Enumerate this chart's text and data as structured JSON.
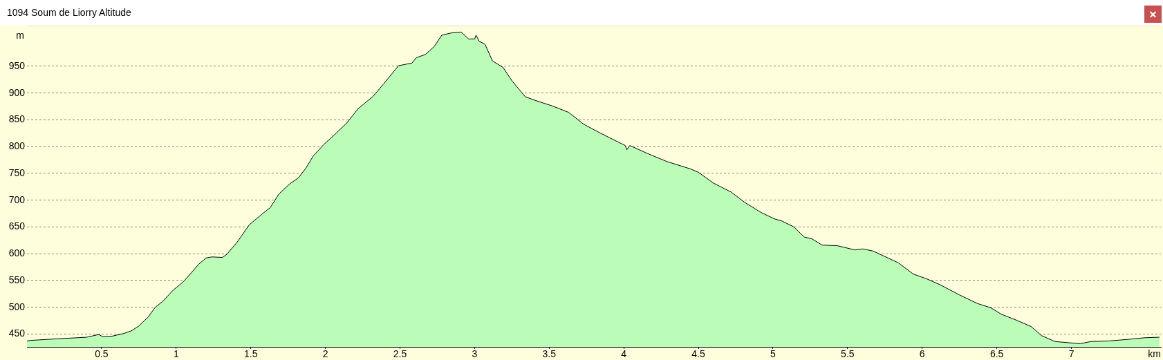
{
  "chart_data": {
    "type": "area",
    "title": "1094 Soum de Liorry Altitude",
    "xlabel": "km",
    "ylabel": "m",
    "x": [
      0,
      0.02,
      0.2,
      0.4,
      0.48,
      0.51,
      0.57,
      0.65,
      0.7,
      0.75,
      0.81,
      0.86,
      0.91,
      0.98,
      1.05,
      1.1,
      1.15,
      1.2,
      1.24,
      1.31,
      1.34,
      1.41,
      1.49,
      1.58,
      1.63,
      1.69,
      1.76,
      1.82,
      1.87,
      1.92,
      1.99,
      2.06,
      2.14,
      2.22,
      2.32,
      2.39,
      2.49,
      2.58,
      2.61,
      2.67,
      2.73,
      2.78,
      2.84,
      2.91,
      2.96,
      3.0,
      3.01,
      3.03,
      3.07,
      3.12,
      3.19,
      3.25,
      3.34,
      3.42,
      3.52,
      3.63,
      3.73,
      3.83,
      3.93,
      4.01,
      4.02,
      4.04,
      4.16,
      4.29,
      4.45,
      4.5,
      4.6,
      4.72,
      4.81,
      4.92,
      5.01,
      5.06,
      5.14,
      5.21,
      5.26,
      5.33,
      5.43,
      5.55,
      5.6,
      5.67,
      5.74,
      5.84,
      5.94,
      6.03,
      6.12,
      6.25,
      6.37,
      6.46,
      6.53,
      6.63,
      6.73,
      6.8,
      6.89,
      6.97,
      7.06,
      7.13,
      7.25,
      7.38,
      7.49,
      7.59
    ],
    "values": [
      437,
      438,
      441,
      444,
      449,
      445,
      446,
      451,
      456,
      465,
      481,
      500,
      511,
      532,
      548,
      564,
      580,
      592,
      594,
      593,
      599,
      622,
      654,
      675,
      686,
      712,
      730,
      742,
      760,
      783,
      804,
      822,
      843,
      871,
      894,
      917,
      951,
      956,
      966,
      972,
      987,
      1008,
      1012,
      1014,
      1001,
      1001,
      1008,
      997,
      991,
      960,
      948,
      923,
      893,
      885,
      876,
      864,
      842,
      827,
      813,
      802,
      794,
      802,
      787,
      772,
      758,
      752,
      732,
      715,
      696,
      677,
      665,
      661,
      650,
      631,
      628,
      616,
      615,
      607,
      609,
      605,
      596,
      583,
      562,
      553,
      542,
      523,
      507,
      499,
      487,
      476,
      464,
      447,
      436,
      434,
      432,
      436,
      437,
      440,
      443,
      444
    ],
    "color": "#bbfdb8",
    "xlim": [
      0,
      7.6
    ],
    "ylim": [
      426,
      1026
    ],
    "xticks": [
      0.5,
      1,
      1.5,
      2,
      2.5,
      3,
      3.5,
      4,
      4.5,
      5,
      5.5,
      6,
      6.5,
      7
    ],
    "yticks": [
      450,
      500,
      550,
      600,
      650,
      700,
      750,
      800,
      850,
      900,
      950
    ],
    "grid": "y"
  }
}
